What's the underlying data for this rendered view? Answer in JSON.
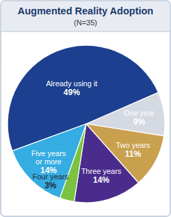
{
  "chart_data": {
    "type": "pie",
    "title": "Augmented Reality Adoption",
    "subtitle": "(N=35)",
    "categories": [
      "Already using it",
      "One year",
      "Two years",
      "Three years",
      "Four years",
      "Five years or more"
    ],
    "values": [
      49,
      9,
      11,
      14,
      3,
      14
    ],
    "value_labels": [
      "49%",
      "9%",
      "11%",
      "14%",
      "3%",
      "14%"
    ],
    "colors": [
      "#1c3f8f",
      "#d5dae2",
      "#c9a04e",
      "#4a2c8c",
      "#7cc242",
      "#35ace2"
    ],
    "data_labels": true
  }
}
